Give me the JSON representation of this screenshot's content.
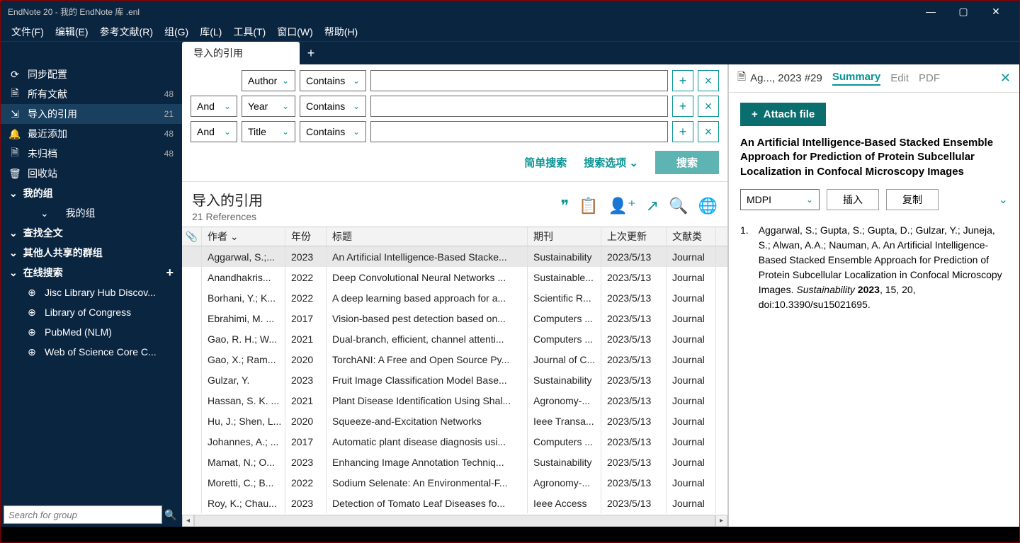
{
  "window": {
    "title": "EndNote 20 - 我的 EndNote 库 .enl"
  },
  "menu": [
    "文件(F)",
    "编辑(E)",
    "参考文献(R)",
    "组(G)",
    "库(L)",
    "工具(T)",
    "窗口(W)",
    "帮助(H)"
  ],
  "tab": {
    "label": "导入的引用"
  },
  "sidebar": {
    "sync": "同步配置",
    "all": "所有文献",
    "all_count": "48",
    "imported": "导入的引用",
    "imported_count": "21",
    "recent": "最近添加",
    "recent_count": "48",
    "unfiled": "未归档",
    "unfiled_count": "48",
    "trash": "回收站",
    "mygroups": "我的组",
    "mygroup_item": "我的组",
    "fulltext": "查找全文",
    "shared": "其他人共享的群组",
    "online": "在线搜索",
    "online_items": [
      "Jisc Library Hub Discov...",
      "Library of Congress",
      "PubMed (NLM)",
      "Web of Science Core C..."
    ],
    "search_placeholder": "Search for group"
  },
  "search": {
    "field1": "Author",
    "op1": "Contains",
    "bool2": "And",
    "field2": "Year",
    "op2": "Contains",
    "bool3": "And",
    "field3": "Title",
    "op3": "Contains",
    "simple": "简单搜索",
    "options": "搜索选项",
    "go": "搜索"
  },
  "list": {
    "title": "导入的引用",
    "count": "21 References",
    "headers": {
      "author": "作者",
      "year": "年份",
      "title": "标题",
      "journal": "期刊",
      "updated": "上次更新",
      "type": "文献类"
    },
    "rows": [
      {
        "author": "Aggarwal, S.;...",
        "year": "2023",
        "title": "An Artificial Intelligence-Based Stacke...",
        "journal": "Sustainability",
        "updated": "2023/5/13",
        "type": "Journal"
      },
      {
        "author": "Anandhakris...",
        "year": "2022",
        "title": "Deep Convolutional Neural Networks ...",
        "journal": "Sustainable...",
        "updated": "2023/5/13",
        "type": "Journal"
      },
      {
        "author": "Borhani, Y.; K...",
        "year": "2022",
        "title": "A deep learning based approach for a...",
        "journal": "Scientific R...",
        "updated": "2023/5/13",
        "type": "Journal"
      },
      {
        "author": "Ebrahimi, M. ...",
        "year": "2017",
        "title": "Vision-based pest detection based on...",
        "journal": "Computers ...",
        "updated": "2023/5/13",
        "type": "Journal"
      },
      {
        "author": "Gao, R. H.; W...",
        "year": "2021",
        "title": "Dual-branch, efficient, channel attenti...",
        "journal": "Computers ...",
        "updated": "2023/5/13",
        "type": "Journal"
      },
      {
        "author": "Gao, X.; Ram...",
        "year": "2020",
        "title": "TorchANI: A Free and Open Source Py...",
        "journal": "Journal of C...",
        "updated": "2023/5/13",
        "type": "Journal"
      },
      {
        "author": "Gulzar, Y.",
        "year": "2023",
        "title": "Fruit Image Classification Model Base...",
        "journal": "Sustainability",
        "updated": "2023/5/13",
        "type": "Journal"
      },
      {
        "author": "Hassan, S. K. ...",
        "year": "2021",
        "title": "Plant Disease Identification Using Shal...",
        "journal": "Agronomy-...",
        "updated": "2023/5/13",
        "type": "Journal"
      },
      {
        "author": "Hu, J.; Shen, L...",
        "year": "2020",
        "title": "Squeeze-and-Excitation Networks",
        "journal": "Ieee Transa...",
        "updated": "2023/5/13",
        "type": "Journal"
      },
      {
        "author": "Johannes, A.; ...",
        "year": "2017",
        "title": "Automatic plant disease diagnosis usi...",
        "journal": "Computers ...",
        "updated": "2023/5/13",
        "type": "Journal"
      },
      {
        "author": "Mamat, N.; O...",
        "year": "2023",
        "title": "Enhancing Image Annotation Techniq...",
        "journal": "Sustainability",
        "updated": "2023/5/13",
        "type": "Journal"
      },
      {
        "author": "Moretti, C.; B...",
        "year": "2022",
        "title": "Sodium Selenate: An Environmental-F...",
        "journal": "Agronomy-...",
        "updated": "2023/5/13",
        "type": "Journal"
      },
      {
        "author": "Roy, K.; Chau...",
        "year": "2023",
        "title": "Detection of Tomato Leaf Diseases fo...",
        "journal": "Ieee Access",
        "updated": "2023/5/13",
        "type": "Journal"
      }
    ]
  },
  "preview": {
    "ref": "Ag..., 2023 #29",
    "tabs": {
      "summary": "Summary",
      "edit": "Edit",
      "pdf": "PDF"
    },
    "attach": "Attach file",
    "title": "An Artificial Intelligence-Based Stacked Ensemble Approach for Prediction of Protein Subcellular Localization in Confocal Microscopy Images",
    "style": "MDPI",
    "insert": "插入",
    "copy": "复制",
    "cite_num": "1.",
    "cite_text": "Aggarwal, S.; Gupta, S.; Gupta, D.; Gulzar, Y.; Juneja, S.; Alwan, A.A.; Nauman, A. An Artificial Intelligence-Based Stacked Ensemble Approach for Prediction of Protein Subcellular Localization in Confocal Microscopy Images. ",
    "cite_journal": "Sustainability",
    "cite_year": "2023",
    "cite_tail": ", 15, 20, doi:10.3390/su15021695."
  }
}
